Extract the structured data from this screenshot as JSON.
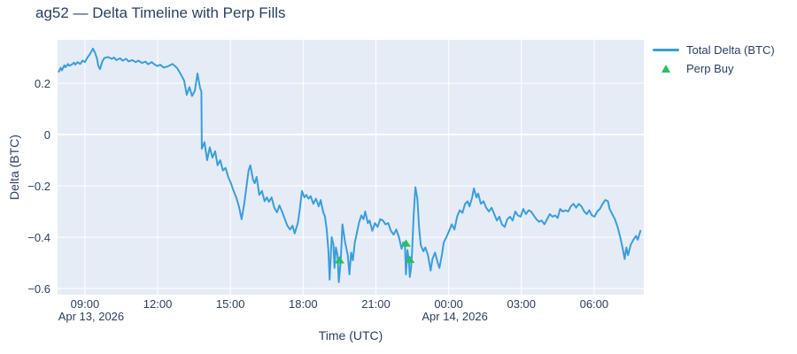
{
  "title": "ag52 — Delta Timeline with Perp Fills",
  "colors": {
    "text": "#2a3f5f",
    "plot_background": "#e5ecf6",
    "gridline": "#ffffff",
    "line_series": "#3a9ddb",
    "marker_series": "#2ebd64",
    "page_background": "#ffffff"
  },
  "legend": {
    "items": [
      {
        "label": "Total Delta (BTC)",
        "symbol": "line"
      },
      {
        "label": "Perp Buy",
        "symbol": "triangle-up"
      }
    ]
  },
  "chart_data": {
    "type": "line",
    "title": "ag52 — Delta Timeline with Perp Fills",
    "xlabel": "Time (UTC)",
    "ylabel": "Delta (BTC)",
    "x_unit": "hours since 2026-04-13 00:00 UTC",
    "xlim": [
      7.87,
      32.05
    ],
    "ylim": [
      -0.624,
      0.369
    ],
    "grid": true,
    "legend_position": "top-right-outside",
    "x_ticks": [
      {
        "t": 9,
        "label": "09:00",
        "date_label": "Apr 13, 2026"
      },
      {
        "t": 12,
        "label": "12:00"
      },
      {
        "t": 15,
        "label": "15:00"
      },
      {
        "t": 18,
        "label": "18:00"
      },
      {
        "t": 21,
        "label": "21:00"
      },
      {
        "t": 24,
        "label": "00:00",
        "date_label": "Apr 14, 2026"
      },
      {
        "t": 27,
        "label": "03:00"
      },
      {
        "t": 30,
        "label": "06:00"
      }
    ],
    "y_ticks": [
      {
        "v": 0.2,
        "label": "0.2"
      },
      {
        "v": 0,
        "label": "0"
      },
      {
        "v": -0.2,
        "label": "−0.2"
      },
      {
        "v": -0.4,
        "label": "−0.4"
      },
      {
        "v": -0.6,
        "label": "−0.6"
      }
    ],
    "series": [
      {
        "name": "Total Delta (BTC)",
        "type": "line",
        "color": "#3a9ddb",
        "points": [
          [
            7.92,
            0.245
          ],
          [
            8.0,
            0.26
          ],
          [
            8.05,
            0.25
          ],
          [
            8.15,
            0.27
          ],
          [
            8.2,
            0.262
          ],
          [
            8.3,
            0.275
          ],
          [
            8.35,
            0.268
          ],
          [
            8.45,
            0.272
          ],
          [
            8.55,
            0.28
          ],
          [
            8.6,
            0.272
          ],
          [
            8.7,
            0.282
          ],
          [
            8.8,
            0.275
          ],
          [
            8.9,
            0.288
          ],
          [
            9.0,
            0.282
          ],
          [
            9.1,
            0.3
          ],
          [
            9.2,
            0.312
          ],
          [
            9.33,
            0.335
          ],
          [
            9.42,
            0.318
          ],
          [
            9.5,
            0.295
          ],
          [
            9.55,
            0.268
          ],
          [
            9.62,
            0.255
          ],
          [
            9.72,
            0.285
          ],
          [
            9.8,
            0.298
          ],
          [
            9.95,
            0.302
          ],
          [
            10.1,
            0.295
          ],
          [
            10.2,
            0.3
          ],
          [
            10.3,
            0.29
          ],
          [
            10.45,
            0.297
          ],
          [
            10.55,
            0.288
          ],
          [
            10.7,
            0.295
          ],
          [
            10.8,
            0.285
          ],
          [
            10.95,
            0.29
          ],
          [
            11.1,
            0.282
          ],
          [
            11.2,
            0.288
          ],
          [
            11.35,
            0.279
          ],
          [
            11.5,
            0.284
          ],
          [
            11.6,
            0.274
          ],
          [
            11.75,
            0.282
          ],
          [
            11.9,
            0.271
          ],
          [
            12.0,
            0.267
          ],
          [
            12.1,
            0.272
          ],
          [
            12.25,
            0.261
          ],
          [
            12.43,
            0.266
          ],
          [
            12.61,
            0.275
          ],
          [
            12.8,
            0.259
          ],
          [
            12.98,
            0.23
          ],
          [
            13.09,
            0.21
          ],
          [
            13.2,
            0.155
          ],
          [
            13.31,
            0.185
          ],
          [
            13.42,
            0.15
          ],
          [
            13.53,
            0.17
          ],
          [
            13.64,
            0.238
          ],
          [
            13.75,
            0.18
          ],
          [
            13.8,
            0.168
          ],
          [
            13.82,
            -0.055
          ],
          [
            13.93,
            -0.03
          ],
          [
            14.04,
            -0.1
          ],
          [
            14.15,
            -0.05
          ],
          [
            14.26,
            -0.09
          ],
          [
            14.37,
            -0.065
          ],
          [
            14.47,
            -0.12
          ],
          [
            14.58,
            -0.1
          ],
          [
            14.69,
            -0.14
          ],
          [
            14.8,
            -0.13
          ],
          [
            14.91,
            -0.165
          ],
          [
            15.02,
            -0.19
          ],
          [
            15.13,
            -0.22
          ],
          [
            15.24,
            -0.245
          ],
          [
            15.35,
            -0.28
          ],
          [
            15.46,
            -0.33
          ],
          [
            15.57,
            -0.27
          ],
          [
            15.68,
            -0.19
          ],
          [
            15.75,
            -0.14
          ],
          [
            15.82,
            -0.12
          ],
          [
            15.93,
            -0.175
          ],
          [
            16.0,
            -0.19
          ],
          [
            16.08,
            -0.165
          ],
          [
            16.19,
            -0.235
          ],
          [
            16.3,
            -0.22
          ],
          [
            16.41,
            -0.26
          ],
          [
            16.5,
            -0.245
          ],
          [
            16.59,
            -0.262
          ],
          [
            16.7,
            -0.245
          ],
          [
            16.81,
            -0.286
          ],
          [
            16.92,
            -0.303
          ],
          [
            17.02,
            -0.276
          ],
          [
            17.13,
            -0.3
          ],
          [
            17.24,
            -0.328
          ],
          [
            17.35,
            -0.355
          ],
          [
            17.46,
            -0.37
          ],
          [
            17.56,
            -0.355
          ],
          [
            17.65,
            -0.385
          ],
          [
            17.78,
            -0.345
          ],
          [
            17.85,
            -0.3
          ],
          [
            17.95,
            -0.22
          ],
          [
            18.05,
            -0.245
          ],
          [
            18.13,
            -0.235
          ],
          [
            18.22,
            -0.25
          ],
          [
            18.31,
            -0.24
          ],
          [
            18.42,
            -0.27
          ],
          [
            18.53,
            -0.25
          ],
          [
            18.64,
            -0.28
          ],
          [
            18.72,
            -0.255
          ],
          [
            18.82,
            -0.3
          ],
          [
            18.9,
            -0.32
          ],
          [
            18.97,
            -0.37
          ],
          [
            19.04,
            -0.45
          ],
          [
            19.09,
            -0.565
          ],
          [
            19.18,
            -0.4
          ],
          [
            19.25,
            -0.43
          ],
          [
            19.29,
            -0.52
          ],
          [
            19.35,
            -0.44
          ],
          [
            19.42,
            -0.47
          ],
          [
            19.47,
            -0.575
          ],
          [
            19.55,
            -0.49
          ],
          [
            19.62,
            -0.35
          ],
          [
            19.73,
            -0.42
          ],
          [
            19.84,
            -0.47
          ],
          [
            19.91,
            -0.545
          ],
          [
            19.98,
            -0.46
          ],
          [
            20.05,
            -0.49
          ],
          [
            20.13,
            -0.42
          ],
          [
            20.2,
            -0.39
          ],
          [
            20.3,
            -0.345
          ],
          [
            20.4,
            -0.315
          ],
          [
            20.49,
            -0.33
          ],
          [
            20.56,
            -0.3
          ],
          [
            20.67,
            -0.345
          ],
          [
            20.74,
            -0.335
          ],
          [
            20.85,
            -0.375
          ],
          [
            20.96,
            -0.345
          ],
          [
            21.07,
            -0.36
          ],
          [
            21.18,
            -0.33
          ],
          [
            21.29,
            -0.335
          ],
          [
            21.4,
            -0.35
          ],
          [
            21.51,
            -0.345
          ],
          [
            21.62,
            -0.375
          ],
          [
            21.73,
            -0.39
          ],
          [
            21.84,
            -0.37
          ],
          [
            21.95,
            -0.4
          ],
          [
            22.06,
            -0.445
          ],
          [
            22.13,
            -0.42
          ],
          [
            22.2,
            -0.43
          ],
          [
            22.24,
            -0.545
          ],
          [
            22.3,
            -0.45
          ],
          [
            22.36,
            -0.49
          ],
          [
            22.4,
            -0.555
          ],
          [
            22.45,
            -0.52
          ],
          [
            22.49,
            -0.46
          ],
          [
            22.56,
            -0.31
          ],
          [
            22.63,
            -0.205
          ],
          [
            22.71,
            -0.25
          ],
          [
            22.78,
            -0.36
          ],
          [
            22.85,
            -0.43
          ],
          [
            22.96,
            -0.455
          ],
          [
            23.04,
            -0.44
          ],
          [
            23.15,
            -0.47
          ],
          [
            23.26,
            -0.53
          ],
          [
            23.33,
            -0.485
          ],
          [
            23.44,
            -0.46
          ],
          [
            23.55,
            -0.5
          ],
          [
            23.62,
            -0.52
          ],
          [
            23.73,
            -0.465
          ],
          [
            23.8,
            -0.42
          ],
          [
            23.91,
            -0.4
          ],
          [
            24.02,
            -0.375
          ],
          [
            24.13,
            -0.35
          ],
          [
            24.24,
            -0.37
          ],
          [
            24.35,
            -0.32
          ],
          [
            24.46,
            -0.295
          ],
          [
            24.57,
            -0.305
          ],
          [
            24.68,
            -0.27
          ],
          [
            24.78,
            -0.26
          ],
          [
            24.86,
            -0.28
          ],
          [
            24.97,
            -0.245
          ],
          [
            25.04,
            -0.21
          ],
          [
            25.15,
            -0.245
          ],
          [
            25.22,
            -0.23
          ],
          [
            25.33,
            -0.27
          ],
          [
            25.44,
            -0.26
          ],
          [
            25.55,
            -0.285
          ],
          [
            25.66,
            -0.3
          ],
          [
            25.77,
            -0.285
          ],
          [
            25.88,
            -0.31
          ],
          [
            25.99,
            -0.335
          ],
          [
            26.09,
            -0.32
          ],
          [
            26.2,
            -0.35
          ],
          [
            26.31,
            -0.36
          ],
          [
            26.42,
            -0.33
          ],
          [
            26.53,
            -0.32
          ],
          [
            26.64,
            -0.335
          ],
          [
            26.75,
            -0.3
          ],
          [
            26.86,
            -0.315
          ],
          [
            26.97,
            -0.32
          ],
          [
            27.08,
            -0.29
          ],
          [
            27.19,
            -0.31
          ],
          [
            27.3,
            -0.295
          ],
          [
            27.4,
            -0.3
          ],
          [
            27.51,
            -0.315
          ],
          [
            27.62,
            -0.33
          ],
          [
            27.73,
            -0.34
          ],
          [
            27.84,
            -0.335
          ],
          [
            27.95,
            -0.35
          ],
          [
            28.06,
            -0.33
          ],
          [
            28.17,
            -0.31
          ],
          [
            28.28,
            -0.32
          ],
          [
            28.39,
            -0.315
          ],
          [
            28.5,
            -0.325
          ],
          [
            28.6,
            -0.29
          ],
          [
            28.71,
            -0.3
          ],
          [
            28.82,
            -0.295
          ],
          [
            28.93,
            -0.3
          ],
          [
            29.04,
            -0.28
          ],
          [
            29.15,
            -0.27
          ],
          [
            29.26,
            -0.285
          ],
          [
            29.37,
            -0.27
          ],
          [
            29.48,
            -0.28
          ],
          [
            29.59,
            -0.3
          ],
          [
            29.7,
            -0.31
          ],
          [
            29.8,
            -0.295
          ],
          [
            29.91,
            -0.315
          ],
          [
            30.02,
            -0.32
          ],
          [
            30.13,
            -0.3
          ],
          [
            30.24,
            -0.29
          ],
          [
            30.35,
            -0.27
          ],
          [
            30.46,
            -0.255
          ],
          [
            30.57,
            -0.26
          ],
          [
            30.64,
            -0.29
          ],
          [
            30.75,
            -0.31
          ],
          [
            30.86,
            -0.33
          ],
          [
            30.97,
            -0.36
          ],
          [
            31.08,
            -0.4
          ],
          [
            31.19,
            -0.45
          ],
          [
            31.26,
            -0.485
          ],
          [
            31.33,
            -0.44
          ],
          [
            31.4,
            -0.47
          ],
          [
            31.51,
            -0.43
          ],
          [
            31.62,
            -0.41
          ],
          [
            31.73,
            -0.395
          ],
          [
            31.8,
            -0.41
          ],
          [
            31.91,
            -0.375
          ]
        ]
      },
      {
        "name": "Perp Buy",
        "type": "scatter",
        "marker": "triangle-up",
        "color": "#2ebd64",
        "points": [
          [
            19.5,
            -0.49
          ],
          [
            22.24,
            -0.425
          ],
          [
            22.4,
            -0.488
          ]
        ]
      }
    ]
  }
}
